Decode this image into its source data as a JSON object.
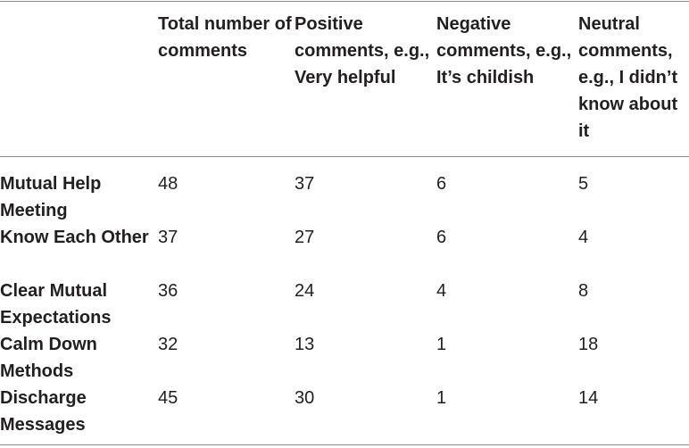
{
  "table": {
    "headers": [
      "",
      "Total number of comments",
      "Positive comments, e.g., Very helpful",
      "Negative comments, e.g., It’s childish",
      "Neutral comments, e.g., I didn’t know about it"
    ],
    "rows": [
      {
        "label": "Mutual Help Meeting",
        "values": [
          "48",
          "37",
          "6",
          "5"
        ]
      },
      {
        "label": "Know Each Other",
        "values": [
          "37",
          "27",
          "6",
          "4"
        ]
      },
      {
        "label": "Clear Mutual Expectations",
        "values": [
          "36",
          "24",
          "4",
          "8"
        ]
      },
      {
        "label": "Calm Down Methods",
        "values": [
          "32",
          "13",
          "1",
          "18"
        ]
      },
      {
        "label": "Discharge Messages",
        "values": [
          "45",
          "30",
          "1",
          "14"
        ]
      }
    ]
  }
}
